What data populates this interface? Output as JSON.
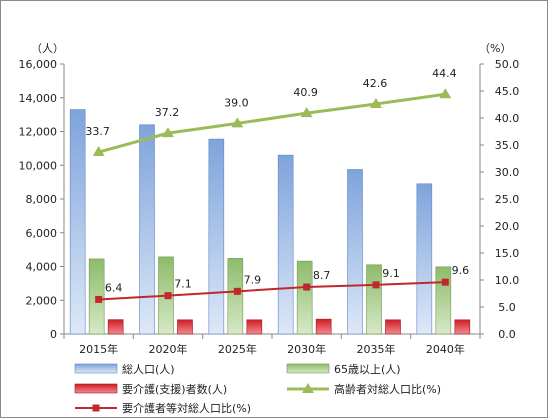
{
  "chart_data": {
    "type": "bar",
    "categories": [
      "2015年",
      "2020年",
      "2025年",
      "2030年",
      "2035年",
      "2040年"
    ],
    "left_axis": {
      "unit": "（人）",
      "ylim": [
        0,
        16000
      ],
      "ticks": [
        "0",
        "2,000",
        "4,000",
        "6,000",
        "8,000",
        "10,000",
        "12,000",
        "14,000",
        "16,000"
      ]
    },
    "right_axis": {
      "unit": "（%）",
      "ylim": [
        0,
        50
      ],
      "ticks": [
        "0.0",
        "5.0",
        "10.0",
        "15.0",
        "20.0",
        "25.0",
        "30.0",
        "35.0",
        "40.0",
        "45.0",
        "50.0"
      ]
    },
    "series": [
      {
        "name": "総人口(人)",
        "type": "bar",
        "axis": "left",
        "color": "#8eaee0",
        "values": [
          13300,
          12400,
          11550,
          10600,
          9750,
          8900
        ]
      },
      {
        "name": "65歳以上(人)",
        "type": "bar",
        "axis": "left",
        "color": "#9ac47a",
        "values": [
          4450,
          4570,
          4480,
          4320,
          4100,
          3980
        ]
      },
      {
        "name": "要介護(支援)者数(人)",
        "type": "bar",
        "axis": "left",
        "color": "#e0323a",
        "values": [
          850,
          840,
          840,
          880,
          840,
          840
        ]
      },
      {
        "name": "高齢者対総人口比(%)",
        "type": "line",
        "axis": "right",
        "color": "#9bbb59",
        "values": [
          33.7,
          37.2,
          39.0,
          40.9,
          42.6,
          44.4
        ],
        "labels": [
          "33.7",
          "37.2",
          "39.0",
          "40.9",
          "42.6",
          "44.4"
        ]
      },
      {
        "name": "要介護者等対総人口比(%)",
        "type": "line",
        "axis": "right",
        "color": "#c0282d",
        "values": [
          6.4,
          7.1,
          7.9,
          8.7,
          9.1,
          9.6
        ],
        "labels": [
          "6.4",
          "7.1",
          "7.9",
          "8.7",
          "9.1",
          "9.6"
        ]
      }
    ],
    "legend": {
      "position": "bottom",
      "entries": [
        "総人口(人)",
        "65歳以上(人)",
        "要介護(支援)者数(人)",
        "高齢者対総人口比(%)",
        "要介護者等対総人口比(%)"
      ]
    },
    "grid": false
  }
}
